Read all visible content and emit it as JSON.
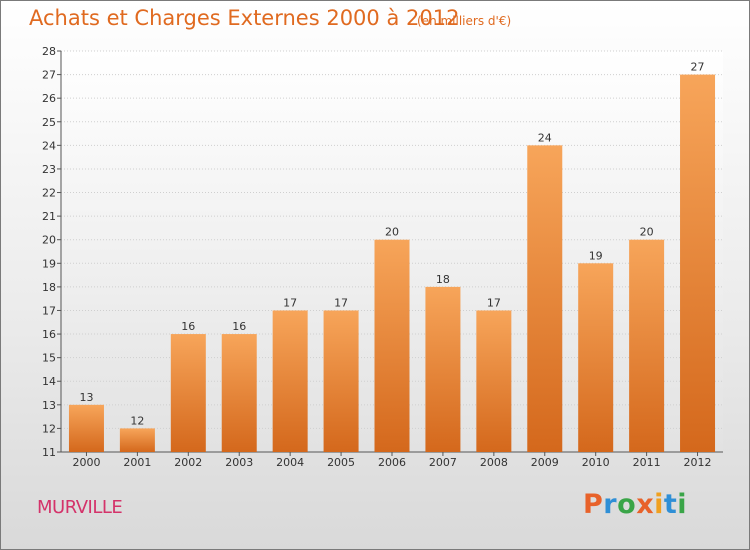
{
  "title": "Achats et Charges Externes 2000 à 2012",
  "unit": "(en milliers d'€)",
  "place": "MURVILLE",
  "logo": {
    "letters": [
      "P",
      "r",
      "o",
      "x",
      "i",
      "t",
      "i"
    ],
    "colors": [
      "#e8622a",
      "#2f8fd6",
      "#3aa548",
      "#e8622a",
      "#f0a020",
      "#2f8fd6",
      "#3aa548"
    ]
  },
  "colors": {
    "title": "#e06a20",
    "place": "#d4336a",
    "bar_light": "#f7a55a",
    "bar_dark": "#d4681c"
  },
  "chart_data": {
    "type": "bar",
    "title": "Achats et Charges Externes 2000 à 2012",
    "categories": [
      "2000",
      "2001",
      "2002",
      "2003",
      "2004",
      "2005",
      "2006",
      "2007",
      "2008",
      "2009",
      "2010",
      "2011",
      "2012"
    ],
    "values": [
      13,
      12,
      16,
      16,
      17,
      17,
      20,
      18,
      17,
      24,
      19,
      20,
      27
    ],
    "ylim": [
      11,
      28
    ],
    "yticks": [
      11,
      12,
      13,
      14,
      15,
      16,
      17,
      18,
      19,
      20,
      21,
      22,
      23,
      24,
      25,
      26,
      27,
      28
    ],
    "grid": true,
    "data_labels": true
  }
}
